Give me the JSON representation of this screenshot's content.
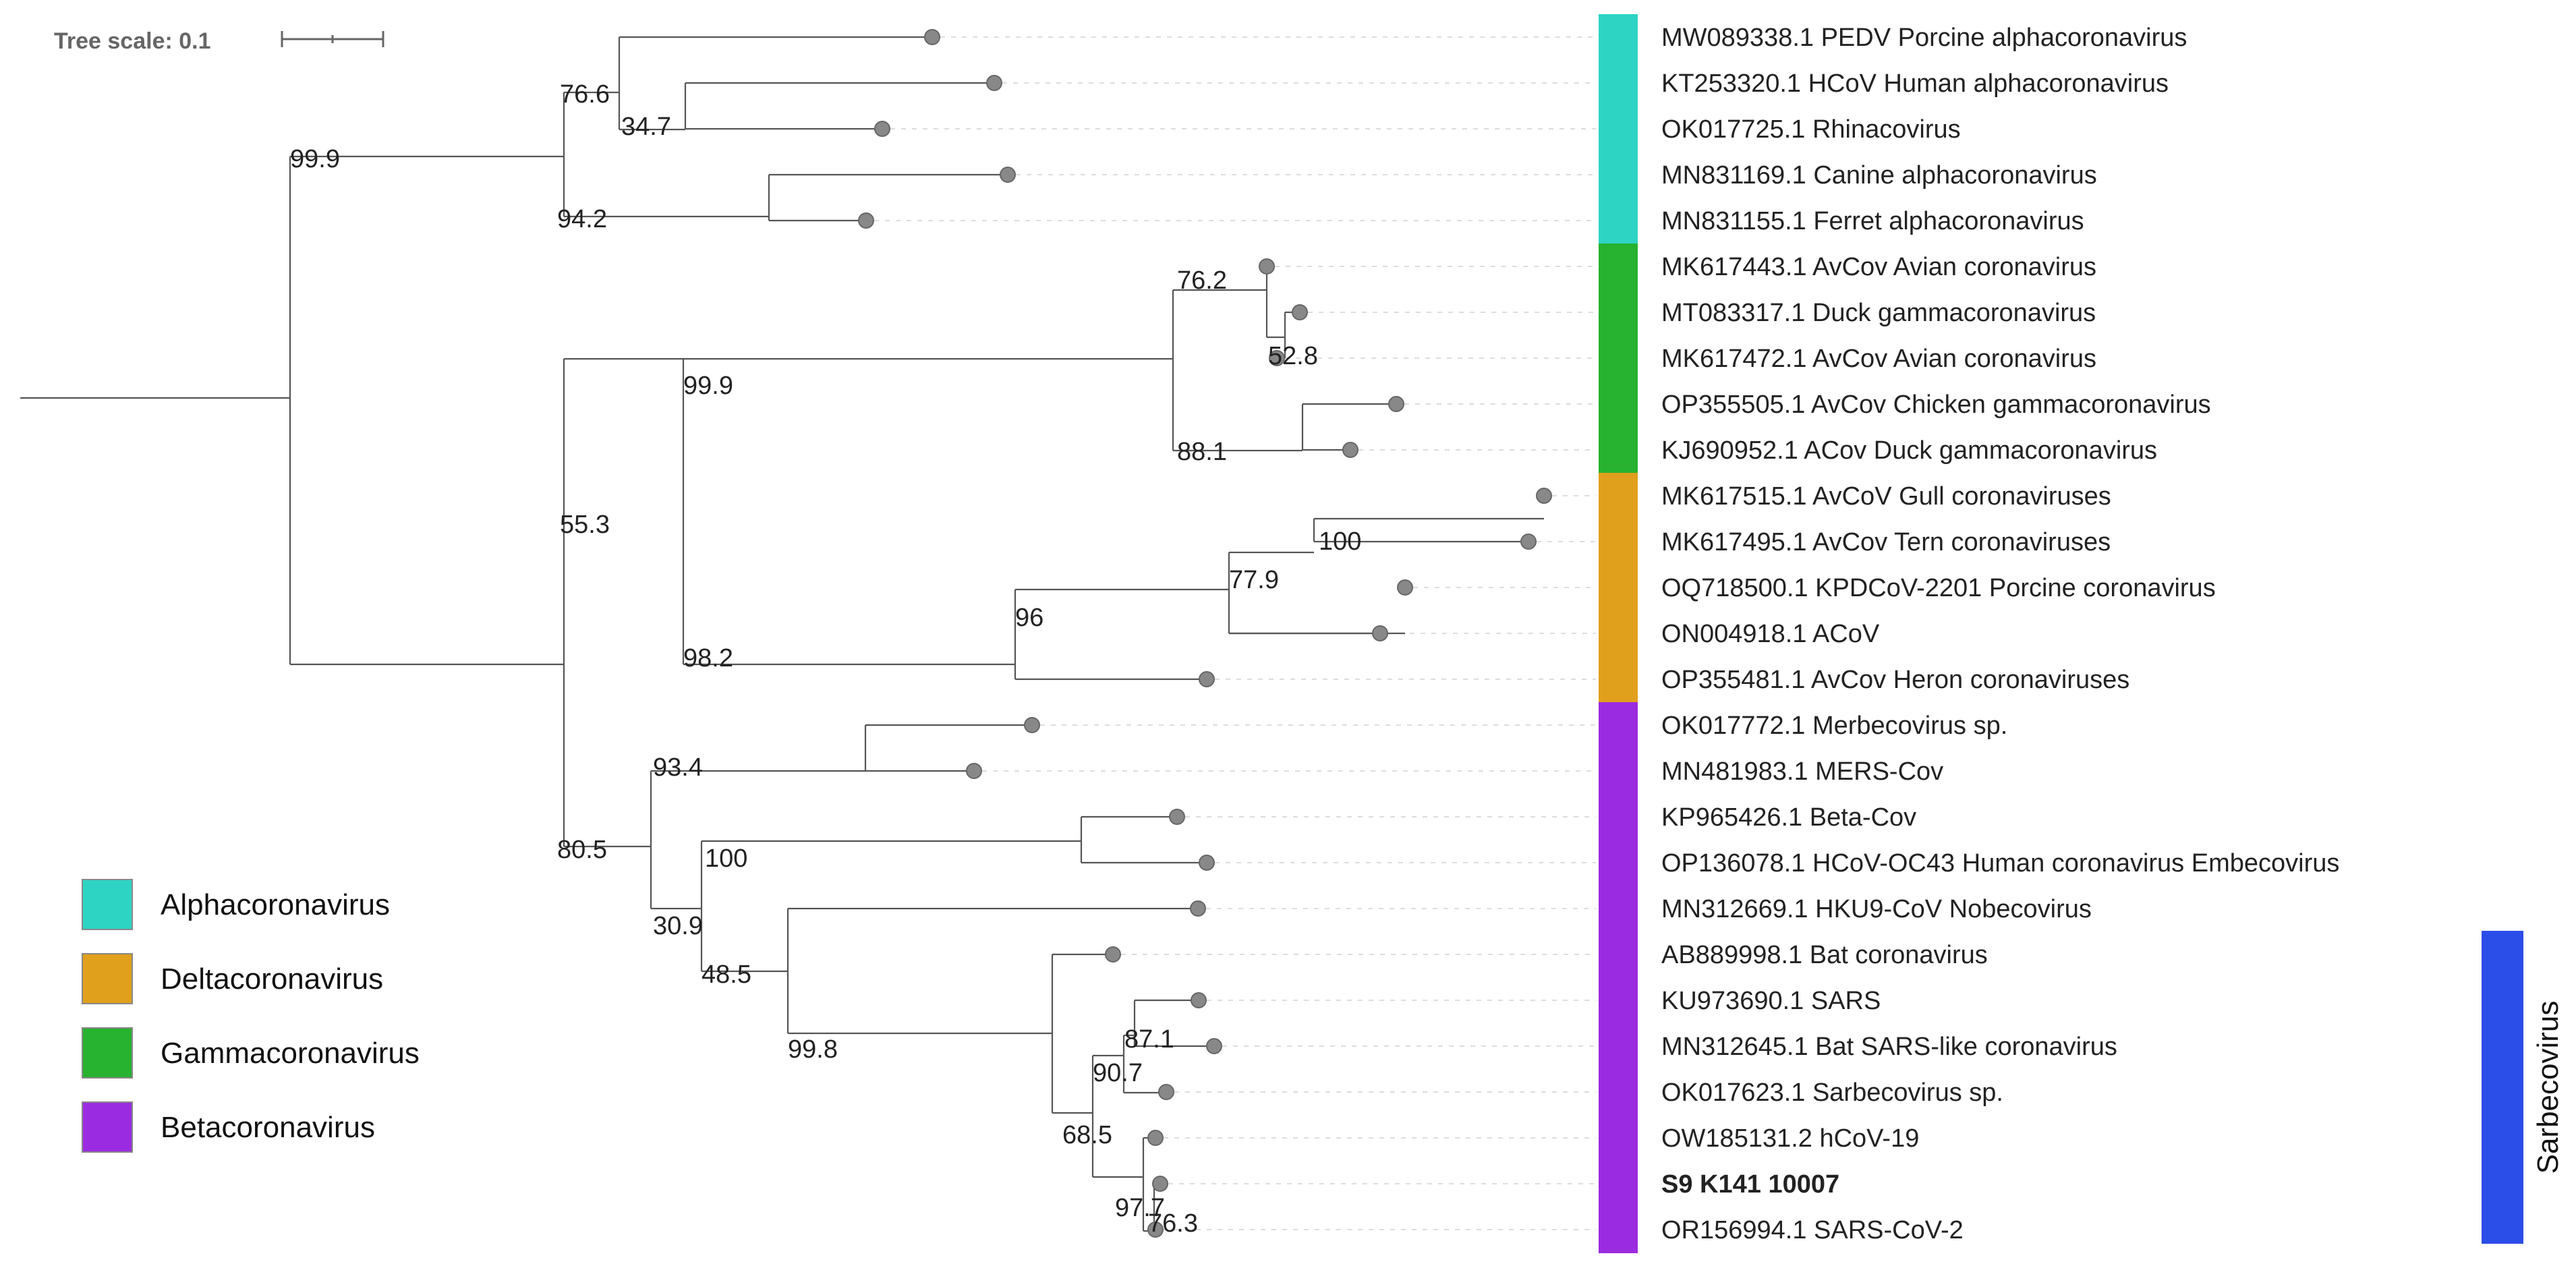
{
  "tree_scale": {
    "label": "Tree scale: 0.1"
  },
  "leaves": [
    {
      "label": "MW089338.1 PEDV Porcine alphacoronavirus",
      "group": "alpha"
    },
    {
      "label": "KT253320.1 HCoV Human alphacoronavirus",
      "group": "alpha"
    },
    {
      "label": "OK017725.1 Rhinacovirus",
      "group": "alpha"
    },
    {
      "label": "MN831169.1 Canine alphacoronavirus",
      "group": "alpha"
    },
    {
      "label": "MN831155.1 Ferret alphacoronavirus",
      "group": "alpha"
    },
    {
      "label": "MK617443.1 AvCov Avian coronavirus",
      "group": "gamma"
    },
    {
      "label": "MT083317.1 Duck gammacoronavirus",
      "group": "gamma"
    },
    {
      "label": "MK617472.1 AvCov Avian coronavirus",
      "group": "gamma"
    },
    {
      "label": "OP355505.1 AvCov Chicken gammacoronavirus",
      "group": "gamma"
    },
    {
      "label": "KJ690952.1 ACov Duck gammacoronavirus",
      "group": "gamma"
    },
    {
      "label": "MK617515.1 AvCoV Gull coronaviruses",
      "group": "delta"
    },
    {
      "label": "MK617495.1 AvCov Tern coronaviruses",
      "group": "delta"
    },
    {
      "label": "OQ718500.1 KPDCoV-2201 Porcine coronavirus",
      "group": "delta"
    },
    {
      "label": "ON004918.1 ACoV",
      "group": "delta"
    },
    {
      "label": "OP355481.1 AvCov Heron coronaviruses",
      "group": "delta"
    },
    {
      "label": "OK017772.1 Merbecovirus sp.",
      "group": "beta"
    },
    {
      "label": "MN481983.1 MERS-Cov",
      "group": "beta"
    },
    {
      "label": "KP965426.1 Beta-Cov",
      "group": "beta"
    },
    {
      "label": "OP136078.1 HCoV-OC43 Human coronavirus Embecovirus",
      "group": "beta"
    },
    {
      "label": "MN312669.1 HKU9-CoV Nobecovirus",
      "group": "beta"
    },
    {
      "label": "AB889998.1 Bat coronavirus",
      "group": "beta"
    },
    {
      "label": "KU973690.1 SARS",
      "group": "beta"
    },
    {
      "label": "MN312645.1 Bat SARS-like coronavirus",
      "group": "beta"
    },
    {
      "label": "OK017623.1 Sarbecovirus sp.",
      "group": "beta"
    },
    {
      "label": "OW185131.2 hCoV-19",
      "group": "beta"
    },
    {
      "label": "S9 K141 10007",
      "group": "beta",
      "highlight": true
    },
    {
      "label": "OR156994.1 SARS-CoV-2",
      "group": "beta"
    }
  ],
  "support_values": [
    "99.9",
    "76.6",
    "34.7",
    "94.2",
    "55.3",
    "99.9",
    "76.2",
    "52.8",
    "88.1",
    "98.2",
    "96",
    "77.9",
    "100",
    "80.5",
    "93.4",
    "30.9",
    "100",
    "48.5",
    "99.8",
    "68.5",
    "97.7",
    "76.3",
    "90.7",
    "87.1"
  ],
  "clade_colors": {
    "alpha": "#2dd4c4",
    "gamma": "#27b22f",
    "delta": "#e0a01c",
    "beta": "#9b2be0"
  },
  "highlight_color": "#f03c3c",
  "sarbecovirus": {
    "label": "Sarbecovirus",
    "color": "#2b4de8"
  },
  "legend": [
    {
      "label": "Alphacoronavirus",
      "color": "#2dd4c4"
    },
    {
      "label": "Deltacoronavirus",
      "color": "#e0a01c"
    },
    {
      "label": "Gammacoronavirus",
      "color": "#27b22f"
    },
    {
      "label": "Betacoronavirus",
      "color": "#9b2be0"
    }
  ]
}
